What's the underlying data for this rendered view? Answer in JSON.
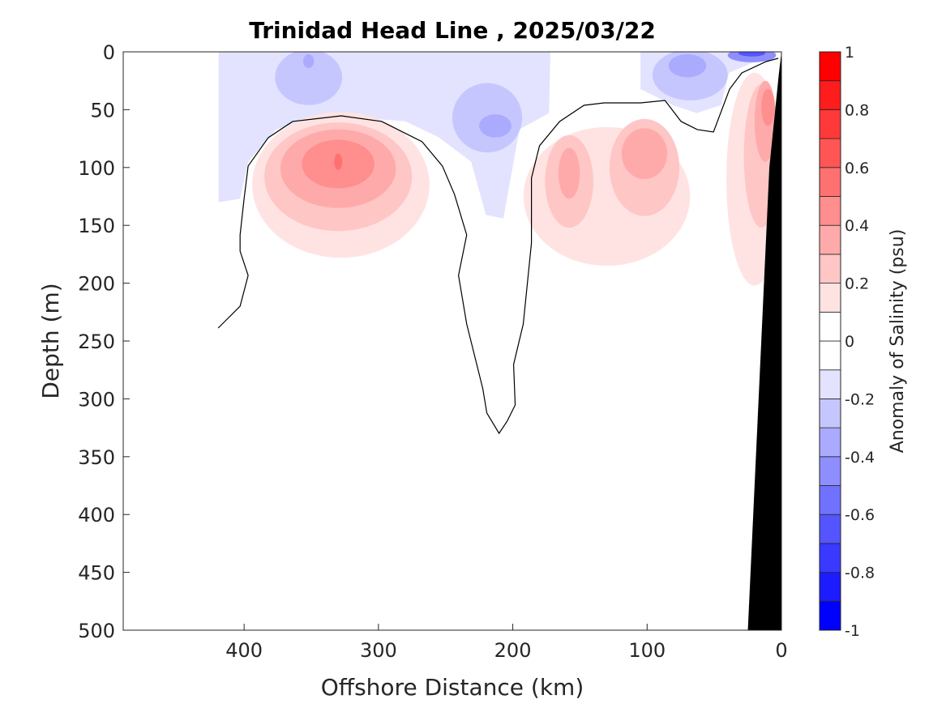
{
  "chart_data": {
    "type": "heatmap",
    "subtype": "filled-contour section",
    "title": "Trinidad Head Line , 2025/03/22",
    "xlabel": "Offshore Distance (km)",
    "ylabel": "Depth (m)",
    "xlim": [
      490,
      0
    ],
    "ylim": [
      0,
      500
    ],
    "x_reversed": true,
    "y_reversed": true,
    "xticks": [
      400,
      300,
      200,
      100,
      0
    ],
    "xtick_labels": [
      "400",
      "300",
      "200",
      "100",
      "0"
    ],
    "yticks": [
      0,
      50,
      100,
      150,
      200,
      250,
      300,
      350,
      400,
      450,
      500
    ],
    "ytick_labels": [
      "0",
      "50",
      "100",
      "150",
      "200",
      "250",
      "300",
      "350",
      "400",
      "450",
      "500"
    ],
    "colorbar": {
      "label": "Anomaly of Salinity (psu)",
      "range": [
        -1,
        1
      ],
      "level_step": 0.1,
      "ticks": [
        1,
        0.8,
        0.6,
        0.4,
        0.2,
        0,
        -0.2,
        -0.4,
        -0.6,
        -0.8,
        -1
      ],
      "tick_labels": [
        "1",
        "0.8",
        "0.6",
        "0.4",
        "0.2",
        "0",
        "-0.2",
        "-0.4",
        "-0.6",
        "-0.8",
        "-1"
      ],
      "negative_color": "#0000ff",
      "positive_color": "#ff0000",
      "mid_color": "#ffffff"
    },
    "negative_regions": [
      {
        "level": -0.1,
        "polygon": [
          [
            419,
            0
          ],
          [
            172,
            0
          ],
          [
            173,
            53
          ],
          [
            195,
            67
          ],
          [
            207,
            144
          ],
          [
            220,
            141
          ],
          [
            231,
            95
          ],
          [
            255,
            74
          ],
          [
            280,
            60
          ],
          [
            316,
            57
          ],
          [
            340,
            55
          ],
          [
            376,
            67
          ],
          [
            397,
            95
          ],
          [
            403,
            127
          ],
          [
            419,
            130
          ]
        ]
      },
      {
        "level": -0.1,
        "polygon": [
          [
            105,
            0
          ],
          [
            2,
            0
          ],
          [
            39,
            18
          ],
          [
            45,
            46
          ],
          [
            63,
            53
          ],
          [
            81,
            46
          ],
          [
            105,
            32
          ]
        ]
      },
      {
        "level": -0.2,
        "ellipse": [
          352,
          22,
          25,
          24
        ]
      },
      {
        "level": -0.2,
        "ellipse": [
          219,
          57,
          26,
          30
        ]
      },
      {
        "level": -0.3,
        "ellipse": [
          213,
          64,
          12,
          10
        ]
      },
      {
        "level": -0.3,
        "ellipse": [
          352,
          8,
          4,
          6
        ]
      },
      {
        "level": -0.2,
        "ellipse": [
          68,
          20,
          28,
          22
        ]
      },
      {
        "level": -0.3,
        "ellipse": [
          70,
          12,
          14,
          10
        ]
      },
      {
        "level": -0.4,
        "ellipse": [
          22,
          3,
          18,
          6
        ]
      },
      {
        "level": -0.6,
        "ellipse": [
          22,
          1,
          10,
          3
        ]
      }
    ],
    "positive_regions": [
      {
        "level": 0.1,
        "ellipse": [
          328,
          115,
          66,
          63
        ]
      },
      {
        "level": 0.2,
        "ellipse": [
          330,
          108,
          55,
          47
        ]
      },
      {
        "level": 0.3,
        "ellipse": [
          330,
          101,
          43,
          34
        ]
      },
      {
        "level": 0.4,
        "ellipse": [
          330,
          97,
          27,
          21
        ]
      },
      {
        "level": 0.5,
        "ellipse": [
          330,
          95,
          3,
          7
        ]
      },
      {
        "level": 0.1,
        "ellipse": [
          130,
          125,
          62,
          60
        ]
      },
      {
        "level": 0.2,
        "ellipse": [
          158,
          112,
          18,
          40
        ]
      },
      {
        "level": 0.2,
        "ellipse": [
          102,
          100,
          26,
          42
        ]
      },
      {
        "level": 0.3,
        "ellipse": [
          102,
          88,
          17,
          22
        ]
      },
      {
        "level": 0.3,
        "ellipse": [
          158,
          105,
          8,
          22
        ]
      },
      {
        "level": 0.1,
        "ellipse": [
          20,
          110,
          21,
          92
        ]
      },
      {
        "level": 0.2,
        "ellipse": [
          15,
          90,
          13,
          62
        ]
      },
      {
        "level": 0.3,
        "ellipse": [
          12,
          60,
          8,
          35
        ]
      },
      {
        "level": 0.4,
        "ellipse": [
          10,
          48,
          5,
          16
        ]
      }
    ],
    "zero_contour": [
      [
        419.3,
        238.8
      ],
      [
        403,
        219.9
      ],
      [
        397,
        193.3
      ],
      [
        403,
        172.3
      ],
      [
        403,
        158.3
      ],
      [
        400,
        126.8
      ],
      [
        397,
        98.7
      ],
      [
        382,
        74.2
      ],
      [
        363.9,
        60.2
      ],
      [
        327.7,
        55.3
      ],
      [
        297.6,
        60.2
      ],
      [
        267.5,
        77.7
      ],
      [
        252.4,
        98.7
      ],
      [
        243.4,
        123.2
      ],
      [
        234.3,
        158.3
      ],
      [
        240.4,
        193.3
      ],
      [
        234.3,
        235.3
      ],
      [
        222.3,
        291.3
      ],
      [
        219.3,
        312.3
      ],
      [
        210.2,
        329.8
      ],
      [
        204.2,
        319.3
      ],
      [
        198.2,
        305.3
      ],
      [
        199.4,
        270.3
      ],
      [
        192.2,
        235.3
      ],
      [
        186.1,
        165.3
      ],
      [
        186.1,
        109.2
      ],
      [
        180.1,
        81.2
      ],
      [
        165.1,
        60.2
      ],
      [
        147,
        46.2
      ],
      [
        131.9,
        44.1
      ],
      [
        104.8,
        44.1
      ],
      [
        86.7,
        42
      ],
      [
        74.7,
        60.2
      ],
      [
        62.7,
        67.2
      ],
      [
        50.6,
        69.3
      ],
      [
        38.6,
        32.2
      ],
      [
        29.5,
        18.2
      ],
      [
        11.4,
        8.4
      ],
      [
        2.4,
        5.6
      ]
    ],
    "bathymetry": {
      "color": "#000000",
      "polygon": [
        [
          0,
          0
        ],
        [
          0,
          500
        ],
        [
          25,
          500
        ],
        [
          17,
          300
        ],
        [
          9,
          100
        ],
        [
          2,
          20
        ]
      ]
    }
  }
}
